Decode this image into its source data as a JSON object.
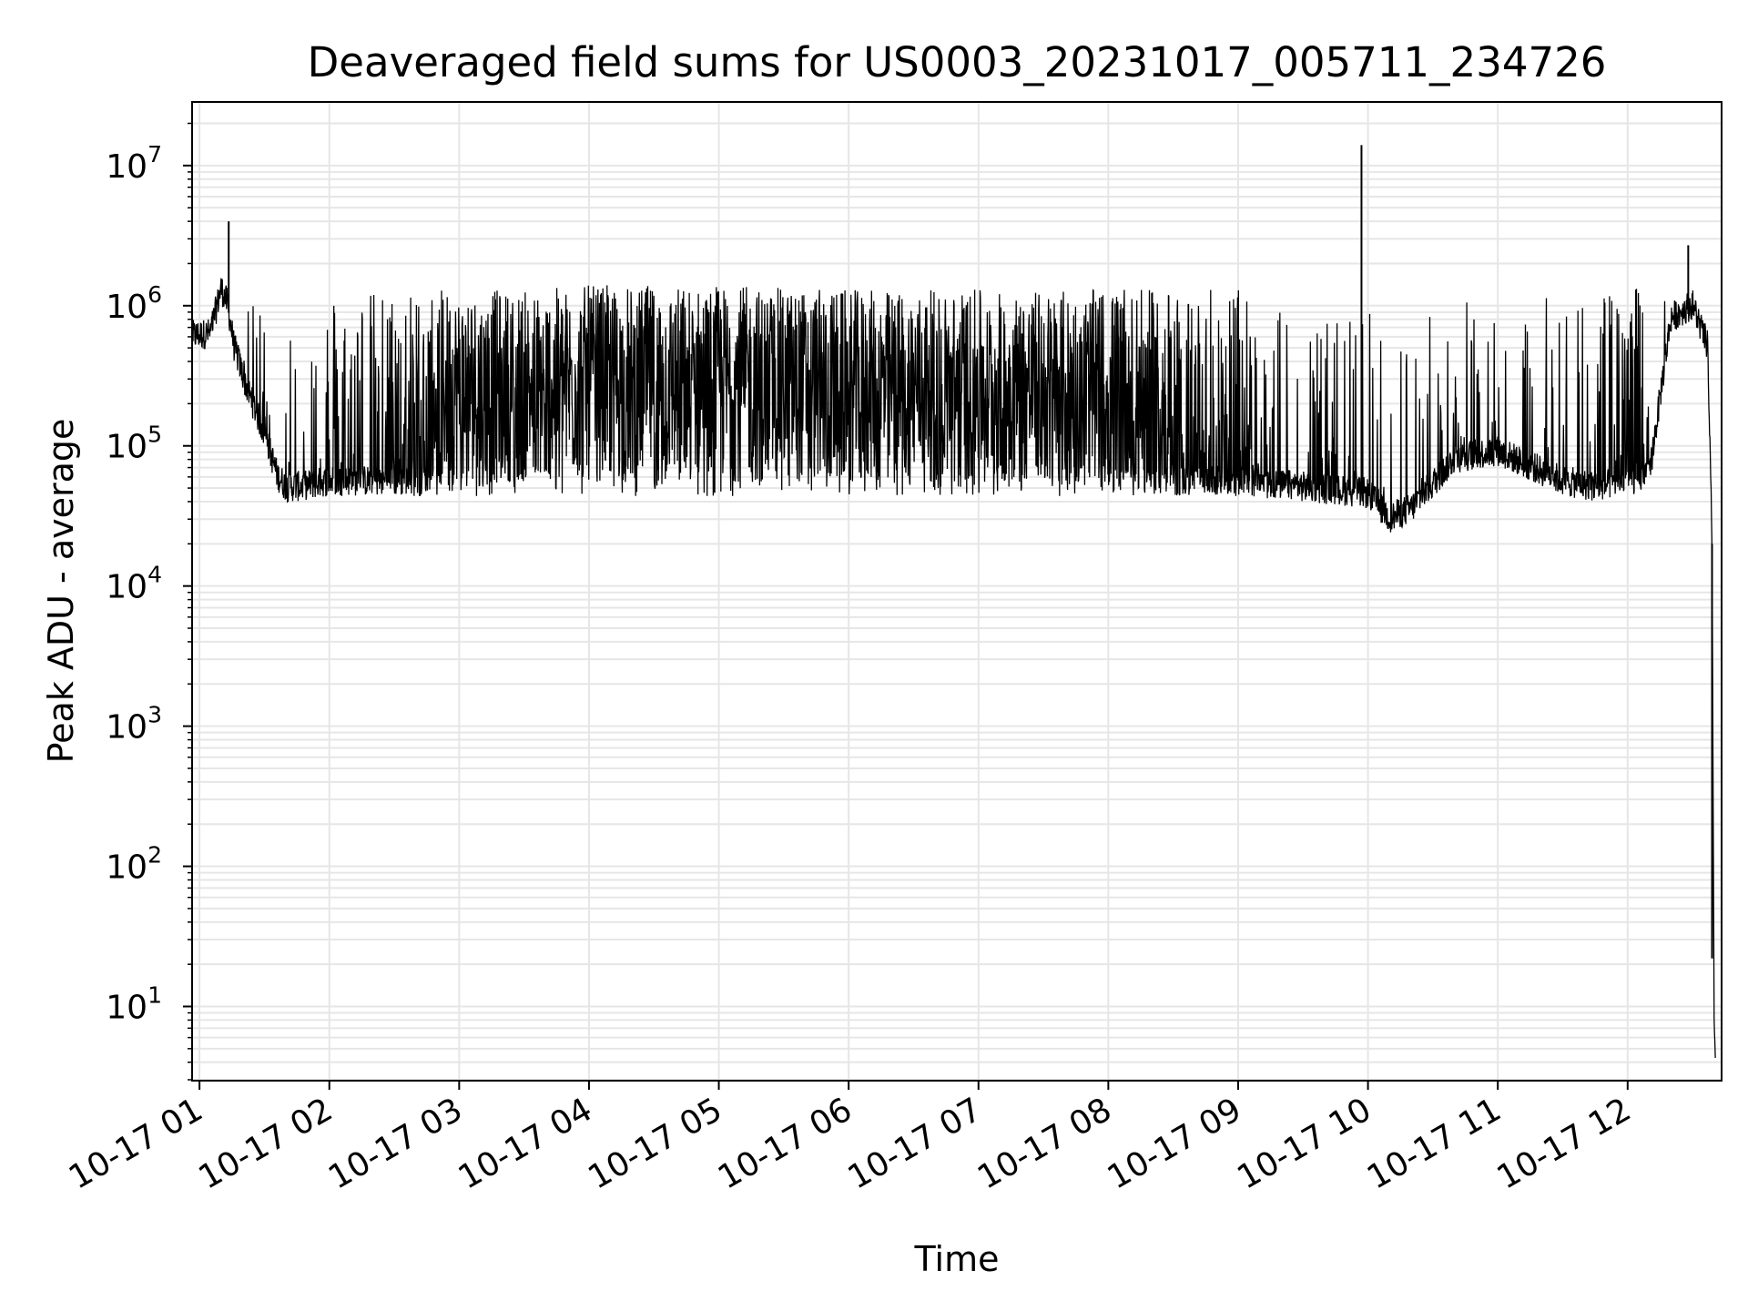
{
  "chart_data": {
    "type": "line",
    "title": "Deaveraged field sums for US0003_20231017_005711_234726",
    "xlabel": "Time",
    "ylabel": "Peak ADU - average",
    "yscale": "log",
    "ylim": [
      3,
      28000000
    ],
    "xlim": [
      "2023-10-17T00:57:00",
      "2023-10-17T12:43:00"
    ],
    "grid": true,
    "line_color": "#000000",
    "grid_color": "#e6e6e6",
    "x_ticks": [
      {
        "t": "2023-10-17T01:00:00",
        "label": "10-17 01"
      },
      {
        "t": "2023-10-17T02:00:00",
        "label": "10-17 02"
      },
      {
        "t": "2023-10-17T03:00:00",
        "label": "10-17 03"
      },
      {
        "t": "2023-10-17T04:00:00",
        "label": "10-17 04"
      },
      {
        "t": "2023-10-17T05:00:00",
        "label": "10-17 05"
      },
      {
        "t": "2023-10-17T06:00:00",
        "label": "10-17 06"
      },
      {
        "t": "2023-10-17T07:00:00",
        "label": "10-17 07"
      },
      {
        "t": "2023-10-17T08:00:00",
        "label": "10-17 08"
      },
      {
        "t": "2023-10-17T09:00:00",
        "label": "10-17 09"
      },
      {
        "t": "2023-10-17T10:00:00",
        "label": "10-17 10"
      },
      {
        "t": "2023-10-17T11:00:00",
        "label": "10-17 11"
      },
      {
        "t": "2023-10-17T12:00:00",
        "label": "10-17 12"
      }
    ],
    "y_ticks": [
      {
        "value": 10,
        "base": "10",
        "exp": "1"
      },
      {
        "value": 100,
        "base": "10",
        "exp": "2"
      },
      {
        "value": 1000,
        "base": "10",
        "exp": "3"
      },
      {
        "value": 10000,
        "base": "10",
        "exp": "4"
      },
      {
        "value": 100000,
        "base": "10",
        "exp": "5"
      },
      {
        "value": 1000000,
        "base": "10",
        "exp": "6"
      },
      {
        "value": 10000000,
        "base": "10",
        "exp": "7"
      }
    ],
    "series": [
      {
        "x": [
          "2023-10-17T00:57:00",
          "2023-10-17T01:05:00",
          "2023-10-17T01:10:00",
          "2023-10-17T01:13:00",
          "2023-10-17T01:16:00",
          "2023-10-17T01:22:00",
          "2023-10-17T01:30:00",
          "2023-10-17T01:36:00",
          "2023-10-17T01:40:00",
          "2023-10-17T01:45:00",
          "2023-10-17T02:00:00",
          "2023-10-17T02:30:00",
          "2023-10-17T03:00:00",
          "2023-10-17T03:30:00",
          "2023-10-17T04:00:00",
          "2023-10-17T05:00:00",
          "2023-10-17T06:00:00",
          "2023-10-17T07:00:00",
          "2023-10-17T08:00:00",
          "2023-10-17T09:00:00",
          "2023-10-17T09:30:00",
          "2023-10-17T10:00:00",
          "2023-10-17T10:10:00",
          "2023-10-17T10:20:00",
          "2023-10-17T10:40:00",
          "2023-10-17T11:00:00",
          "2023-10-17T11:30:00",
          "2023-10-17T11:45:00",
          "2023-10-17T12:00:00",
          "2023-10-17T12:10:00",
          "2023-10-17T12:20:00",
          "2023-10-17T12:30:00",
          "2023-10-17T12:37:00",
          "2023-10-17T12:39:00",
          "2023-10-17T12:40:00",
          "2023-10-17T12:40:30"
        ],
        "low": [
          600000,
          620000,
          1300000,
          1000000,
          500000,
          250000,
          120000,
          60000,
          50000,
          50000,
          55000,
          55000,
          55000,
          55000,
          55000,
          55000,
          55000,
          55000,
          55000,
          55000,
          50000,
          45000,
          30000,
          35000,
          80000,
          90000,
          55000,
          50000,
          55000,
          60000,
          800000,
          1000000,
          500000,
          20000,
          5,
          5
        ],
        "high": [
          900000,
          900000,
          1500000,
          1000000,
          500000,
          900000,
          1300000,
          1300000,
          1300000,
          900000,
          1300000,
          1300000,
          1300000,
          1300000,
          1400000,
          1400000,
          1300000,
          1300000,
          1300000,
          1300000,
          800000,
          1000000,
          600000,
          700000,
          1300000,
          1300000,
          1300000,
          1300000,
          1300000,
          1700000,
          1800000,
          1800000,
          900000,
          20000,
          22,
          22
        ],
        "density": [
          0,
          0,
          0,
          0,
          0,
          0.12,
          0.12,
          0.12,
          0.12,
          0.12,
          0.2,
          0.35,
          0.9,
          0.85,
          0.95,
          0.95,
          0.92,
          0.9,
          0.85,
          0.3,
          0.15,
          0.12,
          0.1,
          0.1,
          0.1,
          0.1,
          0.15,
          0.2,
          0.5,
          0.2,
          0,
          0,
          0,
          0,
          0,
          0
        ],
        "spikes": [
          {
            "t": "2023-10-17T01:13:30",
            "value": 4000000
          },
          {
            "t": "2023-10-17T09:57:00",
            "value": 14000000
          },
          {
            "t": "2023-10-17T12:28:00",
            "value": 2700000
          },
          {
            "t": "2023-10-17T12:39:00",
            "value": 22
          }
        ]
      }
    ]
  }
}
